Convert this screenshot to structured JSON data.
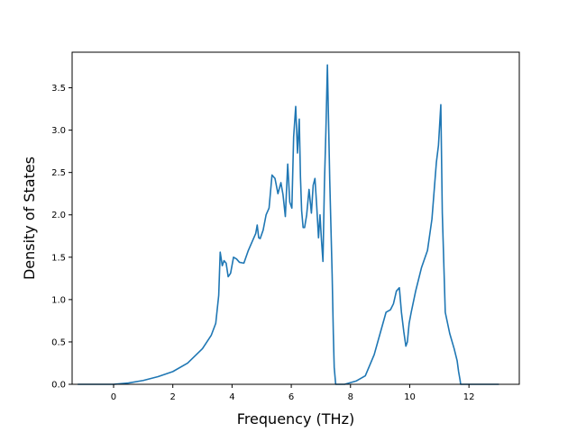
{
  "chart_data": {
    "type": "line",
    "title": "",
    "xlabel": "Frequency (THz)",
    "ylabel": "Density of States",
    "xlim": [
      -1.4,
      13.7
    ],
    "ylim": [
      0,
      3.92
    ],
    "grid": false,
    "line_color": "#1f77b4",
    "x_ticks": [
      0,
      2,
      4,
      6,
      8,
      10,
      12
    ],
    "y_ticks": [
      0.0,
      0.5,
      1.0,
      1.5,
      2.0,
      2.5,
      3.0,
      3.5
    ],
    "x_tick_labels": [
      "0",
      "2",
      "4",
      "6",
      "8",
      "10",
      "12"
    ],
    "y_tick_labels": [
      "0.0",
      "0.5",
      "1.0",
      "1.5",
      "2.0",
      "2.5",
      "3.0",
      "3.5"
    ],
    "series": [
      {
        "x": [
          -1.2,
          -0.6,
          0.0,
          0.5,
          1.0,
          1.5,
          2.0,
          2.5,
          3.0,
          3.3,
          3.45,
          3.55,
          3.6,
          3.67,
          3.73,
          3.8,
          3.87,
          3.95,
          4.05,
          4.15,
          4.25,
          4.4,
          4.55,
          4.7,
          4.8,
          4.85,
          4.9,
          4.95,
          5.05,
          5.15,
          5.25,
          5.35,
          5.45,
          5.55,
          5.65,
          5.72,
          5.8,
          5.88,
          5.95,
          6.02,
          6.08,
          6.15,
          6.21,
          6.27,
          6.31,
          6.35,
          6.4,
          6.45,
          6.52,
          6.6,
          6.68,
          6.74,
          6.8,
          6.86,
          6.92,
          6.97,
          7.02,
          7.07,
          7.12,
          7.17,
          7.22,
          7.3,
          7.38,
          7.42,
          7.45,
          7.5,
          7.58,
          7.67,
          7.75,
          7.8,
          8.2,
          8.5,
          8.8,
          9.0,
          9.2,
          9.35,
          9.45,
          9.55,
          9.65,
          9.72,
          9.8,
          9.87,
          9.92,
          9.98,
          10.05,
          10.2,
          10.4,
          10.6,
          10.75,
          10.9,
          10.97,
          11.05,
          11.1,
          11.2,
          11.35,
          11.5,
          11.6,
          11.65,
          11.7,
          11.72,
          12.0,
          12.4,
          13.0
        ],
        "y": [
          0.0,
          0.0,
          0.0,
          0.015,
          0.045,
          0.09,
          0.15,
          0.25,
          0.42,
          0.58,
          0.72,
          1.05,
          1.56,
          1.4,
          1.46,
          1.43,
          1.27,
          1.31,
          1.5,
          1.48,
          1.44,
          1.43,
          1.58,
          1.7,
          1.78,
          1.88,
          1.73,
          1.72,
          1.82,
          2.0,
          2.08,
          2.47,
          2.43,
          2.25,
          2.38,
          2.24,
          1.98,
          2.6,
          2.15,
          2.08,
          2.92,
          3.28,
          2.73,
          3.13,
          2.45,
          2.05,
          1.85,
          1.85,
          2.0,
          2.3,
          2.02,
          2.35,
          2.43,
          2.1,
          1.73,
          2.0,
          1.7,
          1.45,
          2.37,
          3.0,
          3.77,
          2.4,
          1.3,
          0.6,
          0.2,
          0.0,
          0.0,
          0.0,
          0.0,
          0.0,
          0.04,
          0.1,
          0.35,
          0.6,
          0.85,
          0.88,
          0.95,
          1.1,
          1.14,
          0.85,
          0.62,
          0.45,
          0.5,
          0.72,
          0.85,
          1.1,
          1.38,
          1.58,
          1.95,
          2.62,
          2.82,
          3.3,
          2.02,
          0.85,
          0.6,
          0.42,
          0.28,
          0.15,
          0.05,
          0.0,
          0.0,
          0.0,
          0.0
        ]
      }
    ]
  }
}
